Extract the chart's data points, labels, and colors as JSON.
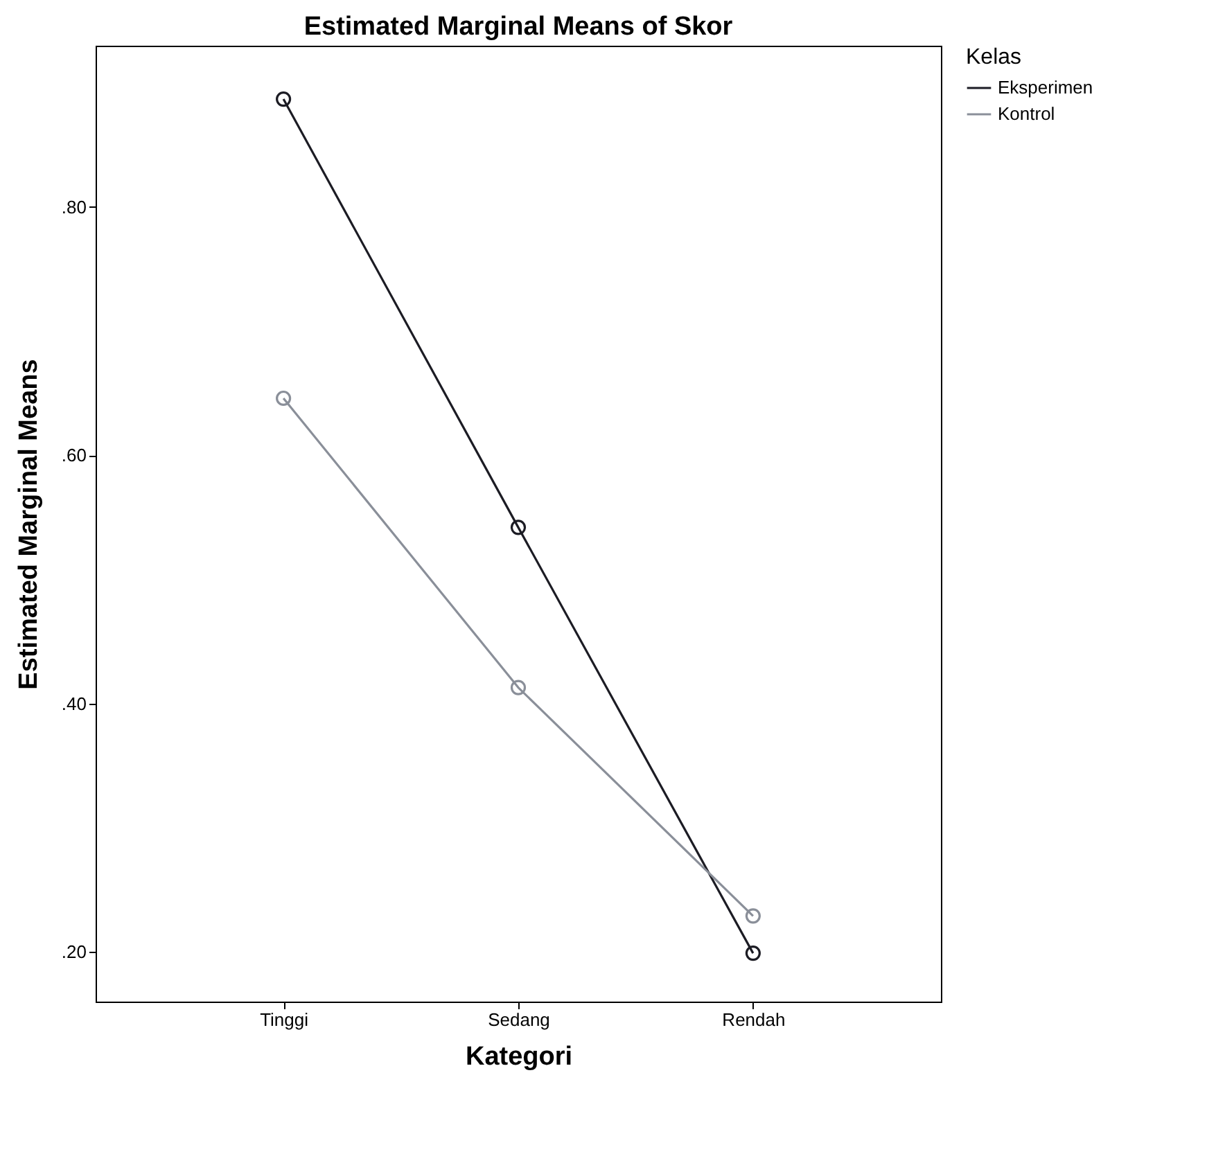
{
  "chart_data": {
    "type": "line",
    "title": "Estimated Marginal Means of Skor",
    "xlabel": "Kategori",
    "ylabel": "Estimated Marginal Means",
    "legend_title": "Kelas",
    "categories": [
      "Tinggi",
      "Sedang",
      "Rendah"
    ],
    "series": [
      {
        "name": "Eksperimen",
        "color": "#1c1c24",
        "values": [
          0.887,
          0.542,
          0.199
        ]
      },
      {
        "name": "Kontrol",
        "color": "#8a8f99",
        "values": [
          0.646,
          0.413,
          0.229
        ]
      }
    ],
    "ylim": [
      0.16,
      0.93
    ],
    "yticks": [
      {
        "value": 0.2,
        "label": ".20"
      },
      {
        "value": 0.4,
        "label": ".40"
      },
      {
        "value": 0.6,
        "label": ".60"
      },
      {
        "value": 0.8,
        "label": ".80"
      }
    ],
    "grid": false,
    "legend": "top right",
    "marker": "circle",
    "line_style": "solid"
  }
}
